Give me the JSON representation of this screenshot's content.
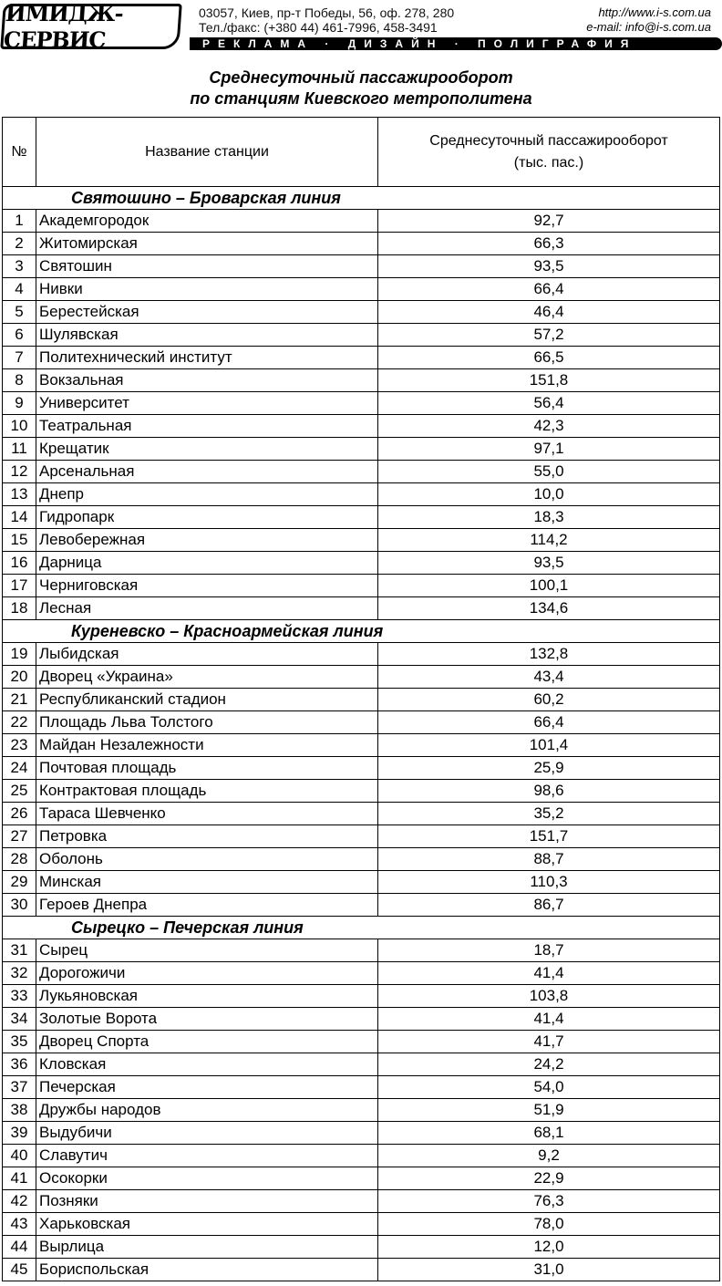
{
  "header": {
    "logo": "ИМИДЖ-СЕРВИС",
    "address": "03057, Киев, пр-т Победы, 56, оф. 278, 280",
    "phone": "Тел./факс: (+380 44) 461-7996, 458-3491",
    "url": "http://www.i-s.com.ua",
    "email": "e-mail: info@i-s.com.ua",
    "tagline": "РЕКЛАМА · ДИЗАЙН · ПОЛИГРАФИЯ"
  },
  "title": [
    "Среднесуточный пассажирооборот",
    "по станциям Киевского метрополитена"
  ],
  "table": {
    "columns": [
      "№",
      "Название станции",
      "Среднесуточный пассажирооборот (тыс. пас.)"
    ],
    "sections": [
      {
        "name": "Святошино – Броварская линия",
        "rows": [
          [
            "1",
            "Академгородок",
            "92,7"
          ],
          [
            "2",
            "Житомирская",
            "66,3"
          ],
          [
            "3",
            "Святошин",
            "93,5"
          ],
          [
            "4",
            "Нивки",
            "66,4"
          ],
          [
            "5",
            "Берестейская",
            "46,4"
          ],
          [
            "6",
            "Шулявская",
            "57,2"
          ],
          [
            "7",
            "Политехнический институт",
            "66,5"
          ],
          [
            "8",
            "Вокзальная",
            "151,8"
          ],
          [
            "9",
            "Университет",
            "56,4"
          ],
          [
            "10",
            "Театральная",
            "42,3"
          ],
          [
            "11",
            "Крещатик",
            "97,1"
          ],
          [
            "12",
            "Арсенальная",
            "55,0"
          ],
          [
            "13",
            "Днепр",
            "10,0"
          ],
          [
            "14",
            "Гидропарк",
            "18,3"
          ],
          [
            "15",
            "Левобережная",
            "114,2"
          ],
          [
            "16",
            "Дарница",
            "93,5"
          ],
          [
            "17",
            "Черниговская",
            "100,1"
          ],
          [
            "18",
            "Лесная",
            "134,6"
          ]
        ]
      },
      {
        "name": "Куреневско – Красноармейская линия",
        "rows": [
          [
            "19",
            "Лыбидская",
            "132,8"
          ],
          [
            "20",
            "Дворец «Украина»",
            "43,4"
          ],
          [
            "21",
            "Республиканский стадион",
            "60,2"
          ],
          [
            "22",
            "Площадь Льва Толстого",
            "66,4"
          ],
          [
            "23",
            "Майдан Незалежности",
            "101,4"
          ],
          [
            "24",
            "Почтовая площадь",
            "25,9"
          ],
          [
            "25",
            "Контрактовая площадь",
            "98,6"
          ],
          [
            "26",
            "Тараса Шевченко",
            "35,2"
          ],
          [
            "27",
            "Петровка",
            "151,7"
          ],
          [
            "28",
            "Оболонь",
            "88,7"
          ],
          [
            "29",
            "Минская",
            "110,3"
          ],
          [
            "30",
            "Героев Днепра",
            "86,7"
          ]
        ]
      },
      {
        "name": "Сырецко – Печерская линия",
        "rows": [
          [
            "31",
            "Сырец",
            "18,7"
          ],
          [
            "32",
            "Дорогожичи",
            "41,4"
          ],
          [
            "33",
            "Лукьяновская",
            "103,8"
          ],
          [
            "34",
            "Золотые Ворота",
            "41,4"
          ],
          [
            "35",
            "Дворец Спорта",
            "41,7"
          ],
          [
            "36",
            "Кловская",
            "24,2"
          ],
          [
            "37",
            "Печерская",
            "54,0"
          ],
          [
            "38",
            "Дружбы народов",
            "51,9"
          ],
          [
            "39",
            "Выдубичи",
            "68,1"
          ],
          [
            "40",
            "Славутич",
            "9,2"
          ],
          [
            "41",
            "Осокорки",
            "22,9"
          ],
          [
            "42",
            "Позняки",
            "76,3"
          ],
          [
            "43",
            "Харьковская",
            "78,0"
          ],
          [
            "44",
            "Вырлица",
            "12,0"
          ],
          [
            "45",
            "Бориспольская",
            "31,0"
          ]
        ]
      }
    ]
  }
}
